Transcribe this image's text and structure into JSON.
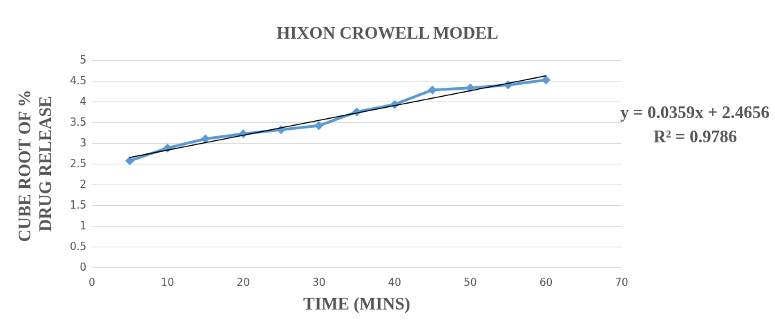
{
  "chart_data": {
    "type": "line",
    "title": "HIXON CROWELL MODEL",
    "xlabel": "TIME (MINS)",
    "ylabel": "CUBE ROOT OF % DRUG RELEASE",
    "x": [
      5,
      10,
      15,
      20,
      25,
      30,
      35,
      40,
      45,
      50,
      55,
      60
    ],
    "series": [
      {
        "color": "#5b9bd5",
        "marker": "diamond",
        "values": [
          2.57,
          2.88,
          3.1,
          3.22,
          3.32,
          3.42,
          3.75,
          3.93,
          4.28,
          4.33,
          4.4,
          4.52
        ]
      },
      {
        "color": "#000000",
        "marker": "none",
        "x": [
          5,
          60
        ],
        "values": [
          2.65,
          4.62
        ]
      }
    ],
    "xlim": [
      0,
      70
    ],
    "xticks": [
      0,
      10,
      20,
      30,
      40,
      50,
      60,
      70
    ],
    "ylim": [
      0,
      5
    ],
    "yticks": [
      0,
      0.5,
      1,
      1.5,
      2,
      2.5,
      3,
      3.5,
      4,
      4.5,
      5
    ],
    "grid": "y",
    "annotations": [
      "y = 0.0359x + 2.4656",
      "R² = 0.9786"
    ]
  }
}
